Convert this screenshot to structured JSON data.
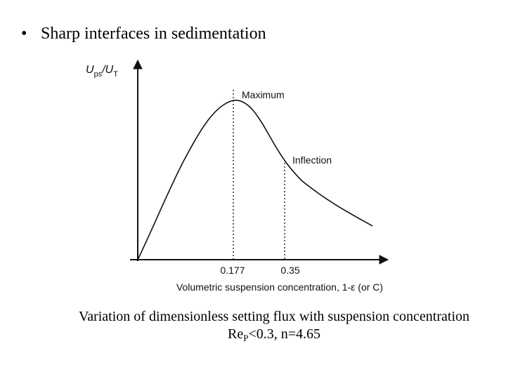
{
  "bullet": "Sharp interfaces in sedimentation",
  "figure": {
    "y_axis_label": [
      "U",
      "ps",
      "/U",
      "T"
    ],
    "annotations": [
      "Maximum",
      "Inflection"
    ],
    "x_tick_labels": [
      "0.177",
      "0.35"
    ],
    "x_axis_label": "Volumetric suspension concentration, 1-ε (or C)"
  },
  "caption": {
    "line1": "Variation of dimensionless setting flux with suspension concentration",
    "line2": [
      "Re",
      "P",
      "<0.3, n=4.65"
    ]
  }
}
